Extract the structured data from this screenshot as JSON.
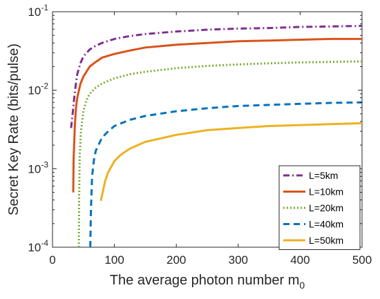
{
  "chart_data": {
    "type": "line",
    "title": "",
    "xlabel": "The average photon number m",
    "xlabel_subscript": "0",
    "ylabel": "Secret Key Rate (bits/pulse)",
    "x_scale": "linear",
    "y_scale": "log",
    "xlim": [
      0,
      500
    ],
    "ylim": [
      0.0001,
      0.1
    ],
    "x_ticks": [
      "0",
      "100",
      "200",
      "300",
      "400",
      "500"
    ],
    "y_ticks": [
      {
        "base": "10",
        "exp": "-4",
        "value": 0.0001
      },
      {
        "base": "10",
        "exp": "-3",
        "value": 0.001
      },
      {
        "base": "10",
        "exp": "-2",
        "value": 0.01
      },
      {
        "base": "10",
        "exp": "-1",
        "value": 0.1
      }
    ],
    "grid": false,
    "legend_position": "bottom-right",
    "series": [
      {
        "name": "L=5km",
        "color": "#7E2F8E",
        "dash": "dashdot",
        "points": [
          [
            30,
            0.0033
          ],
          [
            33,
            0.0055
          ],
          [
            36,
            0.0095
          ],
          [
            40,
            0.016
          ],
          [
            45,
            0.022
          ],
          [
            50,
            0.027
          ],
          [
            60,
            0.033
          ],
          [
            70,
            0.037
          ],
          [
            80,
            0.04
          ],
          [
            100,
            0.045
          ],
          [
            125,
            0.049
          ],
          [
            150,
            0.052
          ],
          [
            200,
            0.056
          ],
          [
            250,
            0.059
          ],
          [
            300,
            0.061
          ],
          [
            350,
            0.062
          ],
          [
            400,
            0.064
          ],
          [
            450,
            0.065
          ],
          [
            500,
            0.066
          ]
        ]
      },
      {
        "name": "L=10km",
        "color": "#D95319",
        "dash": "solid",
        "points": [
          [
            33.5,
            0.0005
          ],
          [
            34,
            0.0013
          ],
          [
            36,
            0.0035
          ],
          [
            38,
            0.006
          ],
          [
            40,
            0.008
          ],
          [
            45,
            0.012
          ],
          [
            50,
            0.015
          ],
          [
            60,
            0.02
          ],
          [
            70,
            0.023
          ],
          [
            80,
            0.026
          ],
          [
            100,
            0.029
          ],
          [
            125,
            0.032
          ],
          [
            150,
            0.035
          ],
          [
            200,
            0.038
          ],
          [
            250,
            0.04
          ],
          [
            300,
            0.042
          ],
          [
            350,
            0.043
          ],
          [
            400,
            0.044
          ],
          [
            450,
            0.045
          ],
          [
            500,
            0.045
          ]
        ]
      },
      {
        "name": "L=20km",
        "color": "#77AC30",
        "dash": "dotted",
        "points": [
          [
            42.5,
            0.0001
          ],
          [
            43,
            0.0004
          ],
          [
            44,
            0.0015
          ],
          [
            46,
            0.003
          ],
          [
            50,
            0.0055
          ],
          [
            55,
            0.0075
          ],
          [
            60,
            0.009
          ],
          [
            70,
            0.0108
          ],
          [
            80,
            0.0122
          ],
          [
            100,
            0.0142
          ],
          [
            125,
            0.016
          ],
          [
            150,
            0.0172
          ],
          [
            200,
            0.0191
          ],
          [
            250,
            0.0204
          ],
          [
            300,
            0.0213
          ],
          [
            350,
            0.022
          ],
          [
            400,
            0.0226
          ],
          [
            450,
            0.023
          ],
          [
            500,
            0.0233
          ]
        ]
      },
      {
        "name": "L=40km",
        "color": "#0072BD",
        "dash": "dashed",
        "points": [
          [
            61,
            0.0001
          ],
          [
            62,
            0.0003
          ],
          [
            64,
            0.0008
          ],
          [
            67,
            0.0013
          ],
          [
            70,
            0.0017
          ],
          [
            80,
            0.0025
          ],
          [
            90,
            0.003
          ],
          [
            100,
            0.0035
          ],
          [
            125,
            0.0042
          ],
          [
            150,
            0.0047
          ],
          [
            200,
            0.0054
          ],
          [
            250,
            0.0059
          ],
          [
            300,
            0.0063
          ],
          [
            350,
            0.0065
          ],
          [
            400,
            0.0067
          ],
          [
            450,
            0.0069
          ],
          [
            500,
            0.007
          ]
        ]
      },
      {
        "name": "L=50km",
        "color": "#EDB120",
        "dash": "solid",
        "points": [
          [
            78,
            0.00039
          ],
          [
            80,
            0.00046
          ],
          [
            85,
            0.0007
          ],
          [
            90,
            0.0009
          ],
          [
            100,
            0.00125
          ],
          [
            110,
            0.0015
          ],
          [
            125,
            0.0018
          ],
          [
            150,
            0.0022
          ],
          [
            200,
            0.0027
          ],
          [
            250,
            0.0031
          ],
          [
            300,
            0.0033
          ],
          [
            350,
            0.0035
          ],
          [
            400,
            0.0036
          ],
          [
            450,
            0.0037
          ],
          [
            500,
            0.0038
          ]
        ]
      }
    ]
  }
}
